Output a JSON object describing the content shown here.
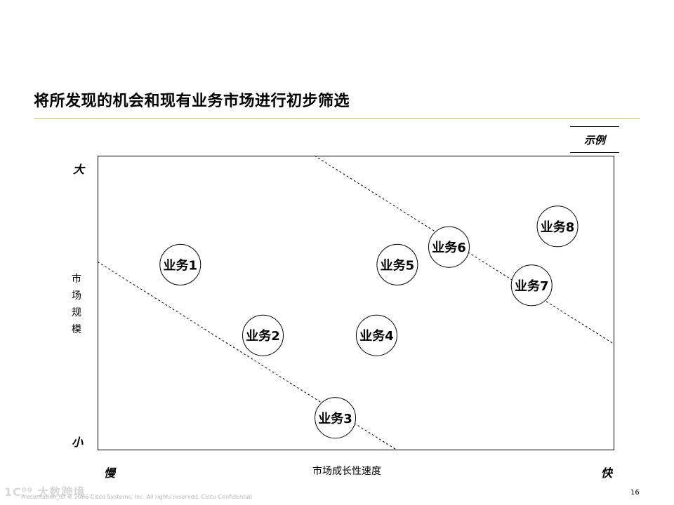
{
  "slide": {
    "title": "将所发现的机会和现有业务市场进行初步筛选",
    "example_label": "示例",
    "page_number": "16",
    "footer_text": "Presentation_ID      © 2006 Cisco Systems, Inc. All rights reserved.      Cisco Confidential",
    "watermark_text": "1C⁰⁰ 大数跨境"
  },
  "chart_data": {
    "type": "scatter",
    "title": "",
    "xlabel": "市场成长性速度",
    "ylabel": "市场规模",
    "x_low_label": "慢",
    "x_high_label": "快",
    "y_low_label": "小",
    "y_high_label": "大",
    "xlim": [
      0,
      100
    ],
    "ylim": [
      0,
      100
    ],
    "grid": false,
    "points": [
      {
        "label": "业务1",
        "x": 16,
        "y": 63
      },
      {
        "label": "业务2",
        "x": 32,
        "y": 39
      },
      {
        "label": "业务3",
        "x": 46,
        "y": 11
      },
      {
        "label": "业务4",
        "x": 54,
        "y": 39
      },
      {
        "label": "业务5",
        "x": 58,
        "y": 63
      },
      {
        "label": "业务6",
        "x": 68,
        "y": 69
      },
      {
        "label": "业务7",
        "x": 84,
        "y": 56
      },
      {
        "label": "业务8",
        "x": 89,
        "y": 76
      }
    ],
    "dashed_lines": [
      {
        "from": [
          0,
          64
        ],
        "to": [
          58,
          0
        ]
      },
      {
        "from": [
          42,
          100
        ],
        "to": [
          100,
          36
        ]
      }
    ]
  }
}
